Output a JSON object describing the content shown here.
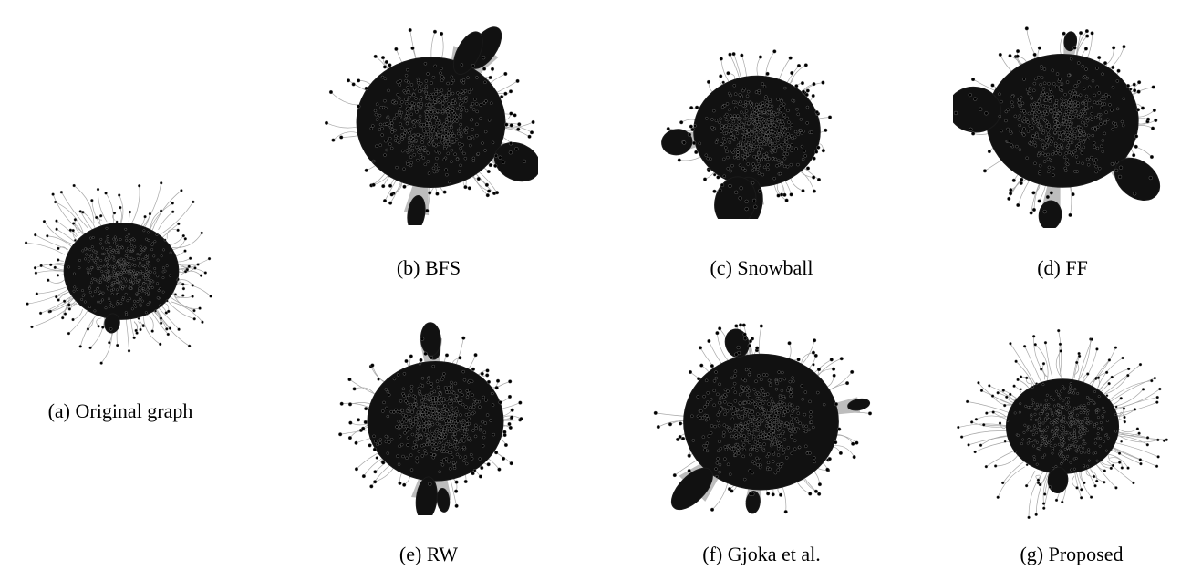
{
  "panels": [
    {
      "id": "a",
      "caption": "(a) Original graph"
    },
    {
      "id": "b",
      "caption": "(b) BFS"
    },
    {
      "id": "c",
      "caption": "(c) Snowball"
    },
    {
      "id": "d",
      "caption": "(d) FF"
    },
    {
      "id": "e",
      "caption": "(e) RW"
    },
    {
      "id": "f",
      "caption": "(f) Gjoka et al."
    },
    {
      "id": "g",
      "caption": "(g) Proposed"
    }
  ]
}
